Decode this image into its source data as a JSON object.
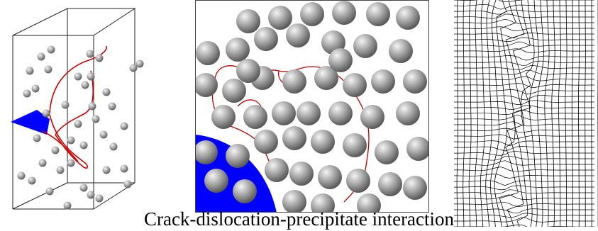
{
  "caption": "Crack-dislocation-precipitate interaction",
  "colors": {
    "crack": "#0000ff",
    "dislocation": "#d00000",
    "precipitate_light": "#f2f2f2",
    "precipitate_dark": "#5e5e5e",
    "mesh": "#000000",
    "frame": "#222222"
  },
  "panels": [
    {
      "id": "left",
      "depicts": "3D simulation box with crack, dislocation loops and precipitates"
    },
    {
      "id": "middle",
      "depicts": "Slice view of crack front, dislocation lines and precipitate spheres"
    },
    {
      "id": "right",
      "depicts": "Deformed finite-element mesh around crack path"
    }
  ]
}
